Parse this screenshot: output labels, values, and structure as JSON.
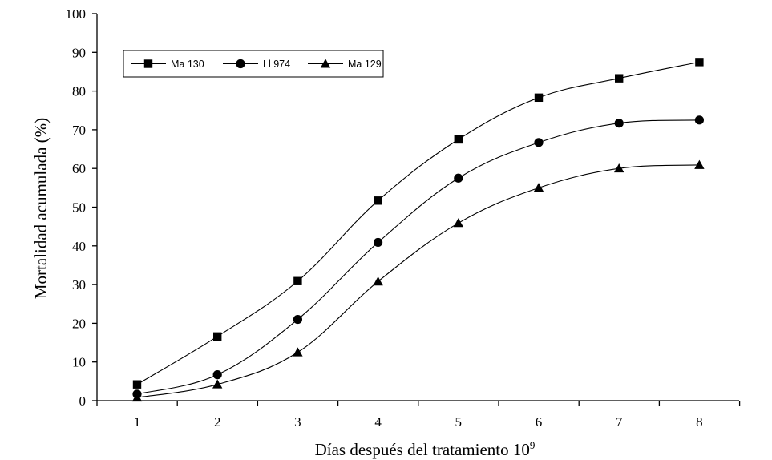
{
  "chart_data": {
    "type": "line",
    "title": "",
    "xlabel": "Días después del tratamiento 10",
    "xlabel_superscript": "9",
    "ylabel": "Mortalidad acumulada (%)",
    "x": [
      1,
      2,
      3,
      4,
      5,
      6,
      7,
      8
    ],
    "xticks": [
      "1",
      "2",
      "3",
      "4",
      "5",
      "6",
      "7",
      "8"
    ],
    "ylim": [
      0,
      100
    ],
    "yticks": [
      "0",
      "10",
      "20",
      "30",
      "40",
      "50",
      "60",
      "70",
      "80",
      "90",
      "100"
    ],
    "grid": false,
    "legend_position": "top-left",
    "series": [
      {
        "name": "Ma 130",
        "marker": "square",
        "values": [
          4.2,
          16.6,
          30.9,
          51.7,
          67.5,
          78.3,
          83.3,
          87.5
        ]
      },
      {
        "name": "Ll 974",
        "marker": "circle",
        "values": [
          1.7,
          6.7,
          21.0,
          40.9,
          57.5,
          66.7,
          71.7,
          72.5
        ]
      },
      {
        "name": "Ma 129",
        "marker": "triangle",
        "values": [
          0.8,
          4.2,
          12.5,
          30.8,
          45.9,
          55.0,
          60.0,
          60.9
        ]
      }
    ]
  }
}
